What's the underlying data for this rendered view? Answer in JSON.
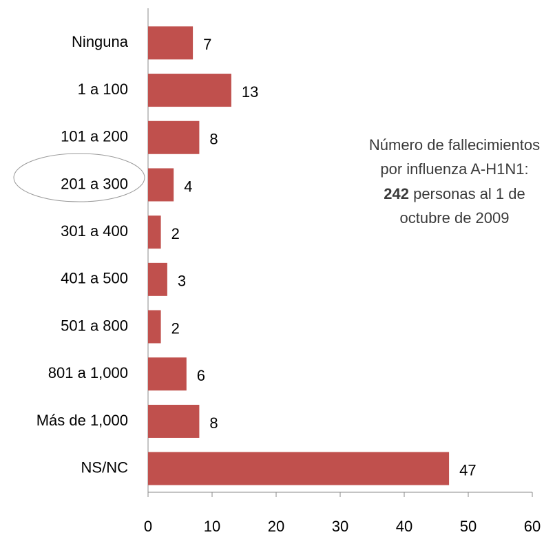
{
  "chart_data": {
    "type": "bar",
    "orientation": "horizontal",
    "categories": [
      "Ninguna",
      "1 a 100",
      "101 a 200",
      "201 a 300",
      "301 a 400",
      "401 a 500",
      "501 a 800",
      "801 a 1,000",
      "Más de 1,000",
      "NS/NC"
    ],
    "values": [
      7,
      13,
      8,
      4,
      2,
      3,
      2,
      6,
      8,
      47
    ],
    "color": "#c0504d",
    "xlim": [
      0,
      60
    ],
    "xticks": [
      0,
      10,
      20,
      30,
      40,
      50,
      60
    ],
    "annotation": {
      "line1": "Número de fallecimientos",
      "line2": "por influenza  A-H1N1:",
      "line3_bold": "242",
      "line3_rest": " personas al 1 de",
      "line4": "octubre de 2009"
    }
  }
}
